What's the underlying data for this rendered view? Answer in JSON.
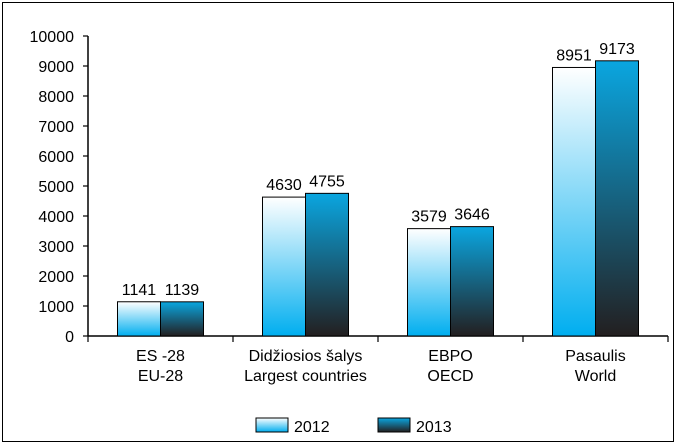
{
  "chart_data": {
    "type": "bar",
    "categories": [
      [
        "ES -28",
        "EU-28"
      ],
      [
        "Didžiosios šalys",
        "Largest countries"
      ],
      [
        "EBPO",
        "OECD"
      ],
      [
        "Pasaulis",
        "World"
      ]
    ],
    "series": [
      {
        "name": "2012",
        "values": [
          1141,
          4630,
          3579,
          8951
        ],
        "gradient": [
          "#ffffff",
          "#00aeef"
        ]
      },
      {
        "name": "2013",
        "values": [
          1139,
          4755,
          3646,
          9173
        ],
        "gradient": [
          "#0aa6e0",
          "#231f20"
        ]
      }
    ],
    "y_ticks": [
      "0",
      "1000",
      "2000",
      "3000",
      "4000",
      "5000",
      "6000",
      "7000",
      "8000",
      "9000",
      "10000"
    ],
    "ylim": [
      0,
      10000
    ],
    "grid": false,
    "legend_position": "bottom",
    "data_labels": true
  }
}
